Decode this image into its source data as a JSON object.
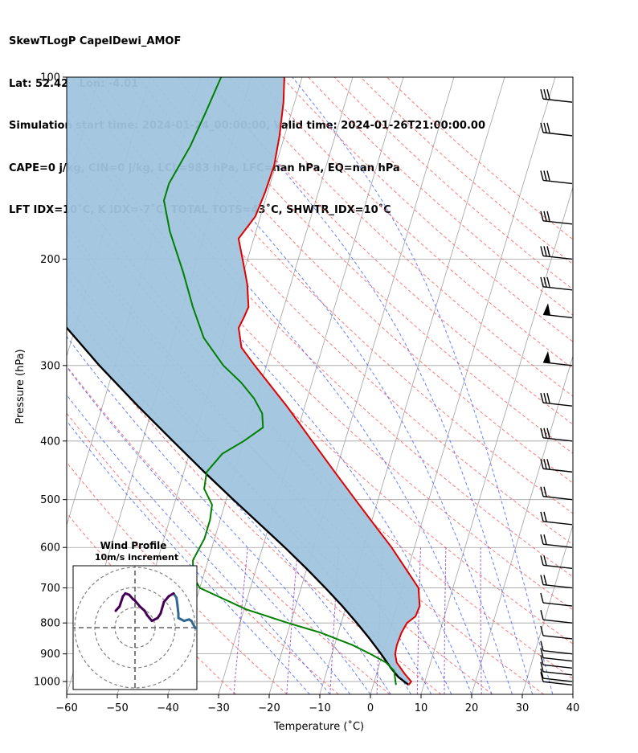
{
  "header": {
    "line1": "SkewTLogP CapelDewi_AMOF",
    "line2": "Lat: 52.42   Lon: -4.01",
    "line3": "Simulation start time: 2024-01-24_00:00:00, Valid time: 2024-01-26T21:00:00.00",
    "line4": "CAPE=0 j/kg, CIN=0 j/kg, LCL=983 hPa, LFC=nan hPa, EQ=nan hPa",
    "line5": "LFT IDX=10˚C, K IDX=-7˚C, TOTAL TOTS=43˚C, SHWTR_IDX=10˚C"
  },
  "chart_data": {
    "type": "line",
    "subtype": "skew-T log-P diagram",
    "xlabel": "Temperature (˚C)",
    "ylabel": "Pressure (hPa)",
    "xlim": [
      -60,
      40
    ],
    "ylim": [
      1050,
      100
    ],
    "y_scale": "log",
    "x_ticks": [
      "−60",
      "−50",
      "−40",
      "−30",
      "−20",
      "−10",
      "0",
      "10",
      "20",
      "30",
      "40"
    ],
    "y_ticks": [
      "100",
      "200",
      "300",
      "400",
      "500",
      "600",
      "700",
      "800",
      "900",
      "1000"
    ],
    "y_tick_values": [
      100,
      200,
      300,
      400,
      500,
      600,
      700,
      800,
      900,
      1000
    ],
    "grid": true,
    "series": [
      {
        "role": "temperature",
        "color": "#e00000",
        "points": [
          [
            1013,
            7.0
          ],
          [
            1000,
            7.3
          ],
          [
            970,
            5.5
          ],
          [
            930,
            3.3
          ],
          [
            900,
            2.5
          ],
          [
            870,
            2.3
          ],
          [
            830,
            2.5
          ],
          [
            800,
            3.0
          ],
          [
            780,
            4.3
          ],
          [
            750,
            4.5
          ],
          [
            700,
            3.2
          ],
          [
            650,
            -0.5
          ],
          [
            600,
            -4.5
          ],
          [
            550,
            -9.3
          ],
          [
            500,
            -14.5
          ],
          [
            450,
            -20.2
          ],
          [
            400,
            -26.5
          ],
          [
            350,
            -33.6
          ],
          [
            300,
            -42.3
          ],
          [
            280,
            -46.0
          ],
          [
            260,
            -47.7
          ],
          [
            250,
            -47.3
          ],
          [
            240,
            -47.0
          ],
          [
            220,
            -48.6
          ],
          [
            200,
            -51.0
          ],
          [
            185,
            -53.0
          ],
          [
            170,
            -51.0
          ],
          [
            155,
            -50.5
          ],
          [
            140,
            -50.3
          ],
          [
            125,
            -51.0
          ],
          [
            110,
            -52.2
          ],
          [
            100,
            -53.5
          ]
        ]
      },
      {
        "role": "dewpoint",
        "color": "#008000",
        "points": [
          [
            1013,
            4.5
          ],
          [
            1000,
            4.2
          ],
          [
            960,
            3.3
          ],
          [
            930,
            1.2
          ],
          [
            900,
            -2.4
          ],
          [
            870,
            -6.5
          ],
          [
            830,
            -13.5
          ],
          [
            800,
            -20.5
          ],
          [
            760,
            -29.5
          ],
          [
            700,
            -40.0
          ],
          [
            670,
            -42.0
          ],
          [
            630,
            -43.0
          ],
          [
            580,
            -42.0
          ],
          [
            540,
            -42.0
          ],
          [
            510,
            -42.5
          ],
          [
            480,
            -45.0
          ],
          [
            450,
            -45.5
          ],
          [
            420,
            -43.5
          ],
          [
            400,
            -40.0
          ],
          [
            380,
            -37.0
          ],
          [
            360,
            -38.0
          ],
          [
            340,
            -40.5
          ],
          [
            320,
            -44.0
          ],
          [
            300,
            -48.5
          ],
          [
            270,
            -54.0
          ],
          [
            240,
            -58.0
          ],
          [
            210,
            -62.0
          ],
          [
            180,
            -67.0
          ],
          [
            160,
            -70.0
          ],
          [
            150,
            -70.0
          ],
          [
            130,
            -68.0
          ],
          [
            115,
            -67.0
          ],
          [
            100,
            -66.0
          ]
        ]
      },
      {
        "role": "parcel profile",
        "color": "#000000",
        "points": [
          [
            1013,
            7.0
          ],
          [
            983,
            4.5
          ],
          [
            950,
            2.5
          ],
          [
            900,
            -0.3
          ],
          [
            850,
            -3.4
          ],
          [
            800,
            -6.9
          ],
          [
            750,
            -10.8
          ],
          [
            700,
            -15.2
          ],
          [
            650,
            -20.1
          ],
          [
            600,
            -25.6
          ],
          [
            550,
            -31.8
          ],
          [
            500,
            -38.6
          ],
          [
            450,
            -46.0
          ],
          [
            400,
            -54.0
          ],
          [
            350,
            -63.0
          ],
          [
            300,
            -73.0
          ],
          [
            250,
            -84.0
          ],
          [
            200,
            -96.0
          ],
          [
            150,
            -110.0
          ],
          [
            100,
            -128.0
          ]
        ]
      }
    ],
    "shaded_area": {
      "color": "#a0c4de",
      "description_bounds": [
        "parcel profile",
        "temperature"
      ]
    },
    "reference_lines": {
      "dry_adiabats_color": "#ff6060",
      "moist_adiabats_color": "#4060ff",
      "isotherms_color": "#a0a0a0",
      "mixing_ratio_color": "#9040c0"
    },
    "wind_barbs_pressures": [
      1013,
      1000,
      975,
      950,
      925,
      900,
      850,
      800,
      750,
      700,
      650,
      600,
      550,
      500,
      450,
      400,
      350,
      300,
      250,
      225,
      200,
      175,
      150,
      125,
      110
    ],
    "inset": {
      "title": "Wind Profile",
      "subtitle": "10m/s increment",
      "colors": [
        "#440154",
        "#31688e",
        "#35b779"
      ],
      "hodograph_uv": [
        [
          0.2,
          -0.1
        ],
        [
          -0.5,
          -0.2
        ],
        [
          -1.3,
          0.3
        ],
        [
          -1.8,
          0.4
        ],
        [
          -2.8,
          0.3
        ],
        [
          -4.0,
          0.5
        ],
        [
          -4.0,
          0.8
        ],
        [
          -4.2,
          1.4
        ],
        [
          -4.4,
          1.9
        ],
        [
          -5.0,
          2.2
        ],
        [
          -6.0,
          2.0
        ],
        [
          -7.0,
          1.6
        ],
        [
          -7.7,
          0.8
        ],
        [
          -8.3,
          0.5
        ],
        [
          -9.5,
          0.3
        ],
        [
          -10.5,
          0.7
        ],
        [
          -11.0,
          1.0
        ],
        [
          -12.0,
          1.3
        ],
        [
          -13.0,
          1.7
        ],
        [
          -13.4,
          1.8
        ],
        [
          -14.2,
          2.1
        ],
        [
          -15.0,
          2.2
        ],
        [
          -15.5,
          2.0
        ],
        [
          -16.2,
          1.3
        ],
        [
          -17.0,
          1.0
        ]
      ]
    }
  }
}
